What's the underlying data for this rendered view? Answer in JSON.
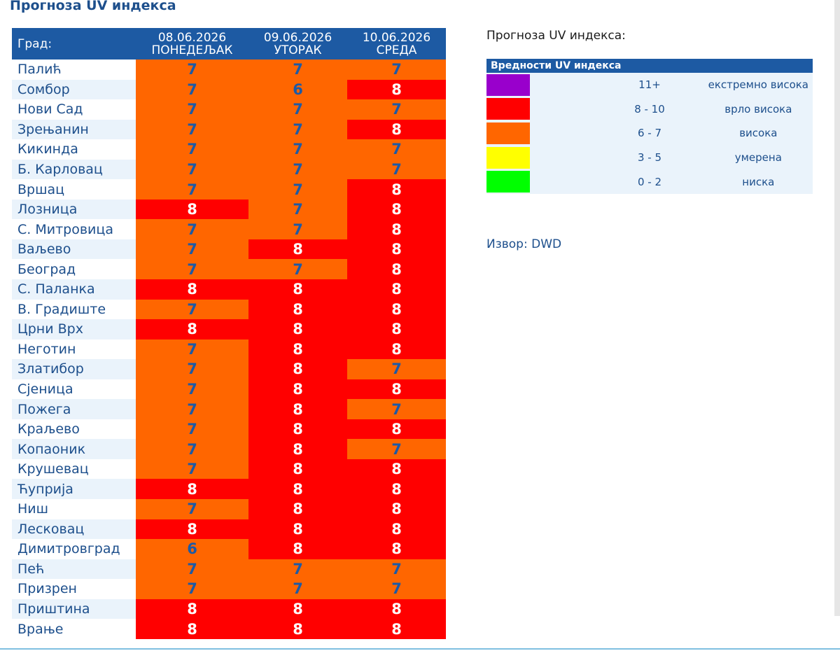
{
  "page_title": "Прогноза UV индекса",
  "table": {
    "city_header": "Град:",
    "days": [
      {
        "date": "08.06.2026",
        "weekday": "ПОНЕДЕЉАК"
      },
      {
        "date": "09.06.2026",
        "weekday": "УТОРАК"
      },
      {
        "date": "10.06.2026",
        "weekday": "СРЕДА"
      }
    ],
    "rows": [
      {
        "city": "Палић",
        "values": [
          7,
          7,
          7
        ]
      },
      {
        "city": "Сомбор",
        "values": [
          7,
          6,
          8
        ]
      },
      {
        "city": "Нови Сад",
        "values": [
          7,
          7,
          7
        ]
      },
      {
        "city": "Зрењанин",
        "values": [
          7,
          7,
          8
        ]
      },
      {
        "city": "Кикинда",
        "values": [
          7,
          7,
          7
        ]
      },
      {
        "city": "Б. Карловац",
        "values": [
          7,
          7,
          7
        ]
      },
      {
        "city": "Вршац",
        "values": [
          7,
          7,
          8
        ]
      },
      {
        "city": "Лозница",
        "values": [
          8,
          7,
          8
        ]
      },
      {
        "city": "С. Митровица",
        "values": [
          7,
          7,
          8
        ]
      },
      {
        "city": "Ваљево",
        "values": [
          7,
          8,
          8
        ]
      },
      {
        "city": "Београд",
        "values": [
          7,
          7,
          8
        ]
      },
      {
        "city": "С. Паланка",
        "values": [
          8,
          8,
          8
        ]
      },
      {
        "city": "В. Градиште",
        "values": [
          7,
          8,
          8
        ]
      },
      {
        "city": "Црни Врх",
        "values": [
          8,
          8,
          8
        ]
      },
      {
        "city": "Неготин",
        "values": [
          7,
          8,
          8
        ]
      },
      {
        "city": "Златибор",
        "values": [
          7,
          8,
          7
        ]
      },
      {
        "city": "Сјеница",
        "values": [
          7,
          8,
          8
        ]
      },
      {
        "city": "Пожега",
        "values": [
          7,
          8,
          7
        ]
      },
      {
        "city": "Краљево",
        "values": [
          7,
          8,
          8
        ]
      },
      {
        "city": "Копаоник",
        "values": [
          7,
          8,
          7
        ]
      },
      {
        "city": "Крушевац",
        "values": [
          7,
          8,
          8
        ]
      },
      {
        "city": "Ћуприја",
        "values": [
          8,
          8,
          8
        ]
      },
      {
        "city": "Ниш",
        "values": [
          7,
          8,
          8
        ]
      },
      {
        "city": "Лесковац",
        "values": [
          8,
          8,
          8
        ]
      },
      {
        "city": "Димитровград",
        "values": [
          6,
          8,
          8
        ]
      },
      {
        "city": "Пећ",
        "values": [
          7,
          7,
          7
        ]
      },
      {
        "city": "Призрен",
        "values": [
          7,
          7,
          7
        ]
      },
      {
        "city": "Приштина",
        "values": [
          8,
          8,
          8
        ]
      },
      {
        "city": "Врање",
        "values": [
          8,
          8,
          8
        ]
      }
    ]
  },
  "legend": {
    "title": "Прогноза UV индекса:",
    "header": "Вредности UV индекса",
    "items": [
      {
        "color": "#9900cc",
        "range": "11+",
        "label": "екстремно висока"
      },
      {
        "color": "#ff0000",
        "range": "8 - 10",
        "label": "врло висока"
      },
      {
        "color": "#ff6600",
        "range": "6 - 7",
        "label": "висока"
      },
      {
        "color": "#ffff00",
        "range": "3 - 5",
        "label": "умерена"
      },
      {
        "color": "#00ff00",
        "range": "0 - 2",
        "label": "ниска"
      }
    ]
  },
  "source": "Извор: DWD",
  "colors": {
    "header_blue": "#1d5aa3",
    "text_blue": "#1d4f8c",
    "uv_high_orange": "#ff6600",
    "uv_very_high_red": "#ff0000",
    "stripe": "#eaf3fb"
  }
}
